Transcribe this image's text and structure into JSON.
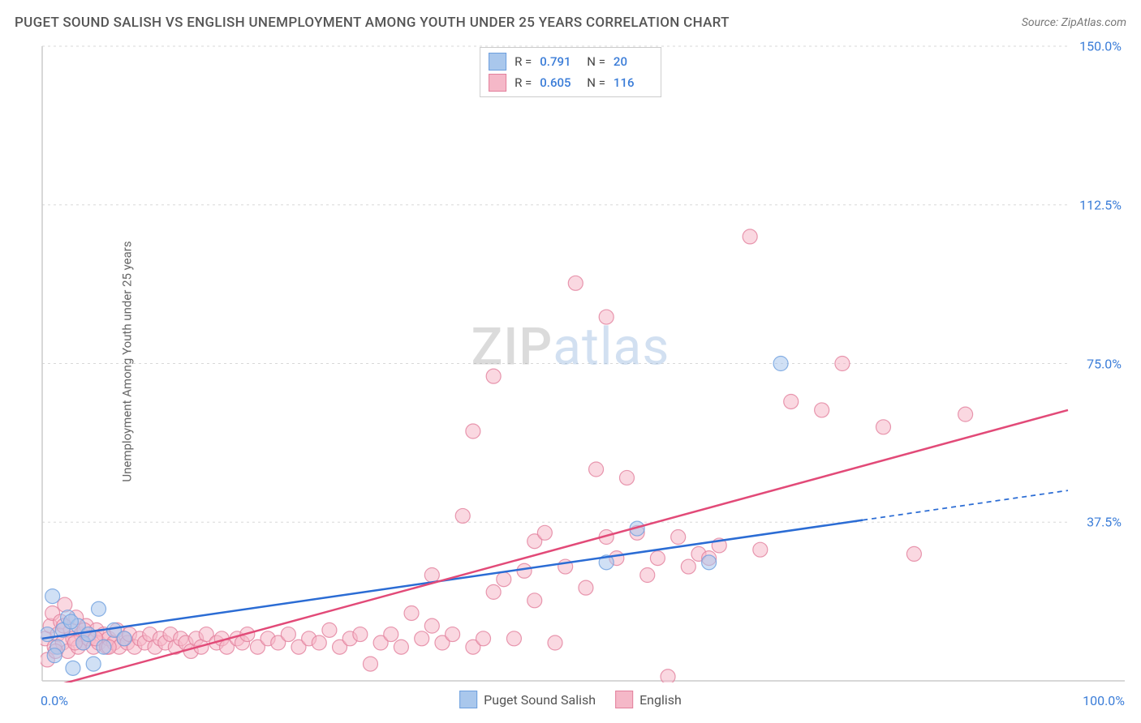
{
  "header": {
    "title": "PUGET SOUND SALISH VS ENGLISH UNEMPLOYMENT AMONG YOUTH UNDER 25 YEARS CORRELATION CHART",
    "source": "Source: ZipAtlas.com"
  },
  "ylabel": "Unemployment Among Youth under 25 years",
  "watermark": {
    "part1": "ZIP",
    "part2": "atlas"
  },
  "chart": {
    "type": "scatter",
    "xlim": [
      0,
      100
    ],
    "ylim": [
      0,
      150
    ],
    "xtick_labels": [
      "0.0%",
      "100.0%"
    ],
    "ytick_labels": [
      "37.5%",
      "75.0%",
      "112.5%",
      "150.0%"
    ],
    "ytick_values": [
      37.5,
      75.0,
      112.5,
      150.0
    ],
    "grid_color": "#d8d8d8",
    "axis_color": "#cccccc",
    "background_color": "#ffffff",
    "series": [
      {
        "name": "Puget Sound Salish",
        "color_fill": "#a9c7ec",
        "color_stroke": "#6d9fde",
        "marker_radius": 9,
        "marker_opacity": 0.55,
        "r": "0.791",
        "n": "20",
        "trend": {
          "x1": 0,
          "y1": 10,
          "x2": 80,
          "y2": 38,
          "color": "#2b6cd4",
          "width": 2.5,
          "extend_x2": 100,
          "extend_y2": 45,
          "dash": "6,5"
        },
        "points": [
          [
            0.5,
            11
          ],
          [
            1,
            20
          ],
          [
            1.5,
            8
          ],
          [
            2,
            12
          ],
          [
            2.5,
            15
          ],
          [
            3,
            3
          ],
          [
            4,
            9
          ],
          [
            5,
            4
          ],
          [
            5.5,
            17
          ],
          [
            7,
            12
          ],
          [
            8,
            10
          ],
          [
            3.5,
            13
          ],
          [
            55,
            28
          ],
          [
            58,
            36
          ],
          [
            65,
            28
          ],
          [
            72,
            75
          ],
          [
            1.2,
            6
          ],
          [
            2.8,
            14
          ],
          [
            4.5,
            11
          ],
          [
            6,
            8
          ]
        ]
      },
      {
        "name": "English",
        "color_fill": "#f5b8c8",
        "color_stroke": "#e2809c",
        "marker_radius": 9,
        "marker_opacity": 0.55,
        "r": "0.605",
        "n": "116",
        "trend": {
          "x1": 0,
          "y1": -2,
          "x2": 100,
          "y2": 64,
          "color": "#e24a78",
          "width": 2.5
        },
        "points": [
          [
            0.3,
            10
          ],
          [
            0.8,
            13
          ],
          [
            1,
            16
          ],
          [
            1.2,
            8
          ],
          [
            1.5,
            11
          ],
          [
            1.8,
            14
          ],
          [
            2,
            9
          ],
          [
            2.2,
            18
          ],
          [
            2.5,
            7
          ],
          [
            2.8,
            12
          ],
          [
            3,
            10
          ],
          [
            3.3,
            15
          ],
          [
            3.5,
            8
          ],
          [
            3.8,
            11
          ],
          [
            4,
            9
          ],
          [
            4.3,
            13
          ],
          [
            4.5,
            10
          ],
          [
            5,
            8
          ],
          [
            5.3,
            12
          ],
          [
            5.5,
            9
          ],
          [
            6,
            11
          ],
          [
            6.3,
            8
          ],
          [
            6.5,
            10
          ],
          [
            7,
            9
          ],
          [
            7.3,
            12
          ],
          [
            7.5,
            8
          ],
          [
            8,
            10
          ],
          [
            8.3,
            9
          ],
          [
            8.5,
            11
          ],
          [
            9,
            8
          ],
          [
            9.5,
            10
          ],
          [
            10,
            9
          ],
          [
            10.5,
            11
          ],
          [
            11,
            8
          ],
          [
            11.5,
            10
          ],
          [
            12,
            9
          ],
          [
            12.5,
            11
          ],
          [
            13,
            8
          ],
          [
            13.5,
            10
          ],
          [
            14,
            9
          ],
          [
            14.5,
            7
          ],
          [
            15,
            10
          ],
          [
            15.5,
            8
          ],
          [
            16,
            11
          ],
          [
            17,
            9
          ],
          [
            17.5,
            10
          ],
          [
            18,
            8
          ],
          [
            19,
            10
          ],
          [
            19.5,
            9
          ],
          [
            20,
            11
          ],
          [
            21,
            8
          ],
          [
            22,
            10
          ],
          [
            23,
            9
          ],
          [
            24,
            11
          ],
          [
            25,
            8
          ],
          [
            26,
            10
          ],
          [
            27,
            9
          ],
          [
            28,
            12
          ],
          [
            29,
            8
          ],
          [
            30,
            10
          ],
          [
            31,
            11
          ],
          [
            32,
            4
          ],
          [
            33,
            9
          ],
          [
            34,
            11
          ],
          [
            35,
            8
          ],
          [
            36,
            16
          ],
          [
            37,
            10
          ],
          [
            38,
            13
          ],
          [
            39,
            9
          ],
          [
            40,
            11
          ],
          [
            41,
            39
          ],
          [
            42,
            8
          ],
          [
            42,
            59
          ],
          [
            43,
            10
          ],
          [
            44,
            21
          ],
          [
            44,
            72
          ],
          [
            45,
            24
          ],
          [
            46,
            10
          ],
          [
            47,
            26
          ],
          [
            48,
            19
          ],
          [
            48,
            33
          ],
          [
            49,
            35
          ],
          [
            50,
            9
          ],
          [
            51,
            27
          ],
          [
            52,
            94
          ],
          [
            53,
            22
          ],
          [
            54,
            50
          ],
          [
            55,
            34
          ],
          [
            55,
            86
          ],
          [
            56,
            29
          ],
          [
            57,
            48
          ],
          [
            58,
            35
          ],
          [
            59,
            25
          ],
          [
            60,
            29
          ],
          [
            61,
            1
          ],
          [
            62,
            34
          ],
          [
            63,
            27
          ],
          [
            64,
            30
          ],
          [
            65,
            29
          ],
          [
            66,
            32
          ],
          [
            69,
            105
          ],
          [
            70,
            31
          ],
          [
            73,
            66
          ],
          [
            76,
            64
          ],
          [
            78,
            75
          ],
          [
            82,
            60
          ],
          [
            85,
            30
          ],
          [
            90,
            63
          ],
          [
            0.5,
            5
          ],
          [
            1.3,
            7
          ],
          [
            2.1,
            13
          ],
          [
            3.2,
            9
          ],
          [
            4.1,
            12
          ],
          [
            5.2,
            10
          ],
          [
            6.5,
            8
          ],
          [
            38,
            25
          ]
        ]
      }
    ]
  },
  "legend_bottom": [
    {
      "label": "Puget Sound Salish",
      "fill": "#a9c7ec",
      "stroke": "#6d9fde"
    },
    {
      "label": "English",
      "fill": "#f5b8c8",
      "stroke": "#e2809c"
    }
  ],
  "legend_top_labels": {
    "r": "R  =",
    "n": "N  ="
  }
}
